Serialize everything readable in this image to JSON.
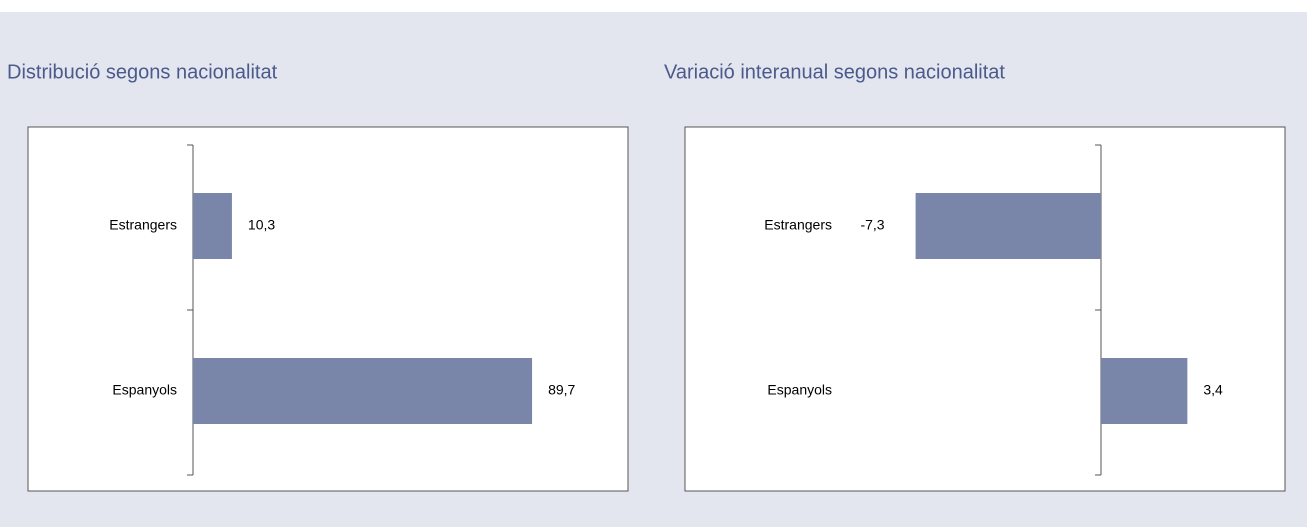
{
  "chart_data": [
    {
      "type": "barh",
      "title": "Distribució segons nacionalitat",
      "categories": [
        "Estrangers",
        "Espanyols"
      ],
      "values": [
        10.3,
        89.7
      ],
      "value_labels": [
        "10,3",
        "89,7"
      ],
      "color": "#7986aa"
    },
    {
      "type": "barh",
      "title": "Variació interanual segons nacionalitat",
      "categories": [
        "Estrangers",
        "Espanyols"
      ],
      "values": [
        -7.3,
        3.4
      ],
      "value_labels": [
        "-7,3",
        "3,4"
      ],
      "color": "#7986aa"
    }
  ]
}
